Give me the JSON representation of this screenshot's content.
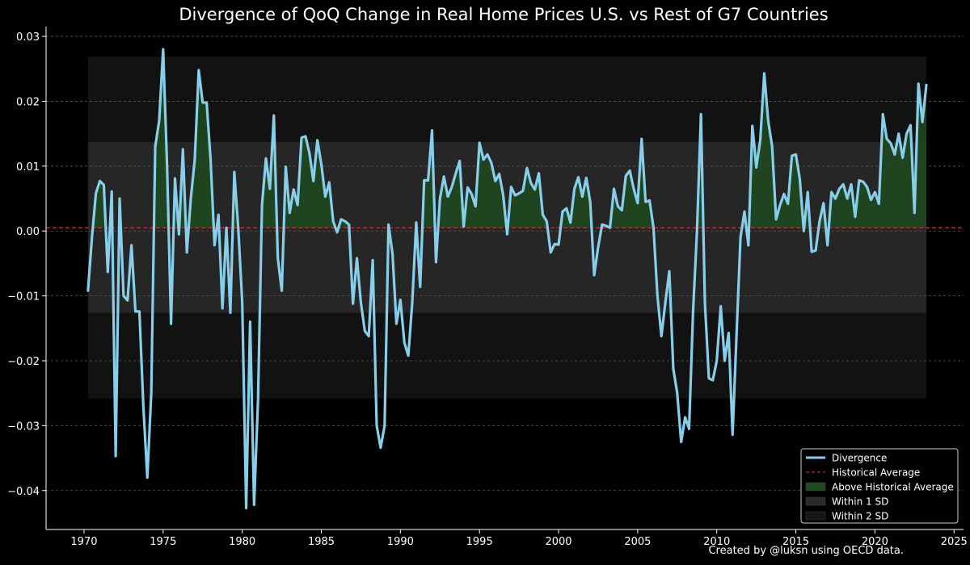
{
  "chart_data": {
    "type": "line",
    "title": "Divergence of QoQ Change in Real Home Prices U.S. vs Rest of G7 Countries",
    "xlabel": "",
    "ylabel": "",
    "credit": "Created by @luksn using OECD data.",
    "xlim": [
      1967.6,
      2025.6
    ],
    "ylim": [
      -0.046,
      0.0315
    ],
    "xticks": [
      1970,
      1975,
      1980,
      1985,
      1990,
      1995,
      2000,
      2005,
      2010,
      2015,
      2020,
      2025
    ],
    "yticks": [
      0.03,
      0.02,
      0.01,
      0.0,
      -0.01,
      -0.02,
      -0.03,
      -0.04
    ],
    "ytick_labels": [
      "0.03",
      "0.02",
      "0.01",
      "0.00",
      "−0.01",
      "−0.02",
      "−0.03",
      "−0.04"
    ],
    "grid": "horizontal dashed",
    "legend_position": "bottom-right",
    "colors": {
      "line": "#87ceeb",
      "average": "#d62728",
      "fill_above": "#1f4a1f",
      "band_1sd": "#262626",
      "band_2sd": "#121212",
      "background": "#000000",
      "text": "#ffffff"
    },
    "historical_average": 0.0005,
    "band_1sd": [
      -0.0126,
      0.0137
    ],
    "band_2sd": [
      -0.0258,
      0.0269
    ],
    "band_x_range": [
      1970.25,
      2023.25
    ],
    "legend": [
      {
        "label": "Divergence",
        "kind": "line",
        "color": "#87ceeb"
      },
      {
        "label": "Historical Average",
        "kind": "dashed",
        "color": "#d62728"
      },
      {
        "label": "Above Historical Average",
        "kind": "patch",
        "color": "#1f4a1f"
      },
      {
        "label": "Within 1 SD",
        "kind": "patch",
        "color": "#2a2a2a"
      },
      {
        "label": "Within 2 SD",
        "kind": "patch",
        "color": "#151515"
      }
    ],
    "series": [
      {
        "name": "Divergence",
        "x": [
          1970.25,
          1970.5,
          1970.75,
          1971,
          1971.25,
          1971.5,
          1971.75,
          1972,
          1972.25,
          1972.5,
          1972.75,
          1973,
          1973.25,
          1973.5,
          1973.75,
          1974,
          1974.25,
          1974.5,
          1974.75,
          1975,
          1975.25,
          1975.5,
          1975.75,
          1976,
          1976.25,
          1976.5,
          1976.75,
          1977,
          1977.25,
          1977.5,
          1977.75,
          1978,
          1978.25,
          1978.5,
          1978.75,
          1979,
          1979.25,
          1979.5,
          1979.75,
          1980,
          1980.25,
          1980.5,
          1980.75,
          1981,
          1981.25,
          1981.5,
          1981.75,
          1982,
          1982.25,
          1982.5,
          1982.75,
          1983,
          1983.25,
          1983.5,
          1983.75,
          1984,
          1984.25,
          1984.5,
          1984.75,
          1985,
          1985.25,
          1985.5,
          1985.75,
          1986,
          1986.25,
          1986.5,
          1986.75,
          1987,
          1987.25,
          1987.5,
          1987.75,
          1988,
          1988.25,
          1988.5,
          1988.75,
          1989,
          1989.25,
          1989.5,
          1989.75,
          1990,
          1990.25,
          1990.5,
          1990.75,
          1991,
          1991.25,
          1991.5,
          1991.75,
          1992,
          1992.25,
          1992.5,
          1992.75,
          1993,
          1993.25,
          1993.5,
          1993.75,
          1994,
          1994.25,
          1994.5,
          1994.75,
          1995,
          1995.25,
          1995.5,
          1995.75,
          1996,
          1996.25,
          1996.5,
          1996.75,
          1997,
          1997.25,
          1997.5,
          1997.75,
          1998,
          1998.25,
          1998.5,
          1998.75,
          1999,
          1999.25,
          1999.5,
          1999.75,
          2000,
          2000.25,
          2000.5,
          2000.75,
          2001,
          2001.25,
          2001.5,
          2001.75,
          2002,
          2002.25,
          2002.5,
          2002.75,
          2003,
          2003.25,
          2003.5,
          2003.75,
          2004,
          2004.25,
          2004.5,
          2004.75,
          2005,
          2005.25,
          2005.5,
          2005.75,
          2006,
          2006.25,
          2006.5,
          2006.75,
          2007,
          2007.25,
          2007.5,
          2007.75,
          2008,
          2008.25,
          2008.5,
          2008.75,
          2009,
          2009.25,
          2009.5,
          2009.75,
          2010,
          2010.25,
          2010.5,
          2010.75,
          2011,
          2011.25,
          2011.5,
          2011.75,
          2012,
          2012.25,
          2012.5,
          2012.75,
          2013,
          2013.25,
          2013.5,
          2013.75,
          2014,
          2014.25,
          2014.5,
          2014.75,
          2015,
          2015.25,
          2015.5,
          2015.75,
          2016,
          2016.25,
          2016.5,
          2016.75,
          2017,
          2017.25,
          2017.5,
          2017.75,
          2018,
          2018.25,
          2018.5,
          2018.75,
          2019,
          2019.25,
          2019.5,
          2019.75,
          2020,
          2020.25,
          2020.5,
          2020.75,
          2021,
          2021.25,
          2021.5,
          2021.75,
          2022,
          2022.25,
          2022.5,
          2022.75,
          2023,
          2023.25
        ],
        "y": [
          -0.0092,
          -0.001,
          0.0058,
          0.0077,
          0.0071,
          -0.0063,
          0.0061,
          -0.0347,
          0.005,
          -0.01,
          -0.0107,
          -0.0022,
          -0.0124,
          -0.0124,
          -0.027,
          -0.038,
          -0.025,
          0.013,
          0.017,
          0.028,
          0.01,
          -0.0143,
          0.0081,
          -0.0005,
          0.0126,
          -0.0033,
          0.005,
          0.011,
          0.0248,
          0.0198,
          0.0198,
          0.011,
          -0.0022,
          0.0025,
          -0.0119,
          0.0005,
          -0.0126,
          0.0091,
          0.0004,
          -0.011,
          -0.0427,
          -0.014,
          -0.0422,
          -0.026,
          0.004,
          0.0112,
          0.0065,
          0.0178,
          -0.0042,
          -0.0092,
          0.0099,
          0.0028,
          0.0064,
          0.004,
          0.0144,
          0.0146,
          0.012,
          0.0077,
          0.014,
          0.0103,
          0.0053,
          0.0075,
          0.0015,
          -0.0002,
          0.0018,
          0.0015,
          0.001,
          -0.0112,
          -0.0042,
          -0.011,
          -0.0154,
          -0.0162,
          -0.0045,
          -0.03,
          -0.0334,
          -0.03,
          0.001,
          -0.0035,
          -0.0143,
          -0.0106,
          -0.0172,
          -0.0192,
          -0.011,
          0.0013,
          -0.0086,
          0.0078,
          0.0078,
          0.0155,
          -0.0048,
          0.005,
          0.0084,
          0.0053,
          0.0068,
          0.0089,
          0.0108,
          0.0007,
          0.0067,
          0.0057,
          0.0038,
          0.0136,
          0.011,
          0.0118,
          0.0105,
          0.0077,
          0.0088,
          0.0055,
          -0.0005,
          0.0068,
          0.0055,
          0.0058,
          0.0062,
          0.0097,
          0.0074,
          0.0064,
          0.0089,
          0.0025,
          0.0015,
          -0.0033,
          -0.002,
          -0.0021,
          0.003,
          0.0035,
          0.0013,
          0.0065,
          0.0083,
          0.0053,
          0.0082,
          0.0045,
          -0.0068,
          -0.0025,
          0.001,
          0.0008,
          0.0005,
          0.0065,
          0.0038,
          0.0032,
          0.0085,
          0.0093,
          0.0065,
          0.0043,
          0.0142,
          0.0045,
          0.0047,
          0.0005,
          -0.01,
          -0.0162,
          -0.011,
          -0.0062,
          -0.0212,
          -0.025,
          -0.0325,
          -0.0287,
          -0.0305,
          -0.0125,
          0.0,
          0.018,
          -0.011,
          -0.0227,
          -0.023,
          -0.02,
          -0.0116,
          -0.02,
          -0.0157,
          -0.0314,
          -0.016,
          -0.001,
          0.003,
          -0.0022,
          0.0162,
          0.0098,
          0.014,
          0.0243,
          0.017,
          0.013,
          0.0018,
          0.004,
          0.0057,
          0.0042,
          0.0116,
          0.0118,
          0.008,
          0.0,
          0.006,
          -0.0032,
          -0.003,
          0.0015,
          0.0043,
          -0.0022,
          0.006,
          0.005,
          0.0065,
          0.0072,
          0.005,
          0.0072,
          0.0022,
          0.0078,
          0.0076,
          0.0068,
          0.0048,
          0.006,
          0.0042,
          0.018,
          0.0142,
          0.0135,
          0.0118,
          0.015,
          0.0113,
          0.015,
          0.0163,
          0.0028,
          0.0227,
          0.0168,
          0.0225
        ]
      }
    ]
  }
}
